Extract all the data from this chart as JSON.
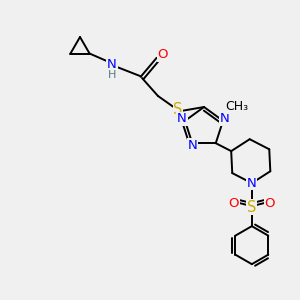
{
  "bg_color": "#f0f0f0",
  "atom_colors": {
    "C": "#000000",
    "N": "#0000ff",
    "O": "#ff0000",
    "S": "#ccaa00",
    "H": "#4a8080"
  },
  "bond_color": "#000000",
  "line_width": 1.4,
  "font_size": 9.5,
  "fig_w": 3.0,
  "fig_h": 3.0,
  "dpi": 100
}
